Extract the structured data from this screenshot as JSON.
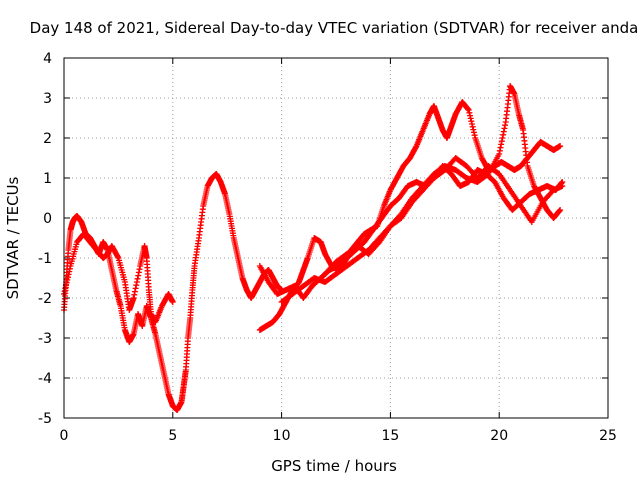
{
  "chart_data": {
    "type": "scatter",
    "title": "Day 148 of 2021, Sidereal Day-to-day VTEC variation (SDTVAR) for receiver anda",
    "xlabel": "GPS time / hours",
    "ylabel": "SDTVAR / TECUs",
    "xlim": [
      0,
      25
    ],
    "ylim": [
      -5,
      4
    ],
    "xticks": [
      0,
      5,
      10,
      15,
      20,
      25
    ],
    "yticks": [
      -5,
      -4,
      -3,
      -2,
      -1,
      0,
      1,
      2,
      3,
      4
    ],
    "grid": true,
    "marker": "+",
    "color": "#ff0000",
    "series": [
      {
        "name": "track-1",
        "x": [
          0.0,
          0.1,
          0.2,
          0.3,
          0.4,
          0.5,
          0.6,
          0.8,
          1.0,
          1.2,
          1.4,
          1.6,
          1.8,
          2.0,
          2.2,
          2.4,
          2.6,
          2.8,
          3.0,
          3.2,
          3.4,
          3.6,
          3.8,
          4.0,
          4.2,
          4.4,
          4.6,
          4.8,
          5.0,
          5.2,
          5.4,
          5.5,
          5.6,
          5.7,
          5.8,
          5.9,
          6.0,
          6.2,
          6.4,
          6.6,
          6.8,
          7.0,
          7.2,
          7.4,
          7.6,
          7.8,
          8.0,
          8.2,
          8.4,
          8.6,
          8.8,
          9.0,
          9.2,
          9.4,
          9.6,
          9.8,
          10.0
        ],
        "y": [
          -2.3,
          -1.6,
          -0.8,
          -0.3,
          -0.1,
          0.0,
          0.05,
          -0.1,
          -0.4,
          -0.5,
          -0.7,
          -0.9,
          -0.6,
          -0.8,
          -1.3,
          -1.8,
          -2.2,
          -2.8,
          -3.1,
          -2.9,
          -2.4,
          -2.7,
          -2.2,
          -2.5,
          -2.9,
          -3.4,
          -3.9,
          -4.4,
          -4.7,
          -4.8,
          -4.6,
          -4.2,
          -3.8,
          -3.0,
          -2.5,
          -1.8,
          -1.2,
          -0.5,
          0.3,
          0.8,
          1.0,
          1.1,
          0.9,
          0.6,
          0.1,
          -0.5,
          -1.0,
          -1.5,
          -1.8,
          -2.0,
          -1.8,
          -1.6,
          -1.4,
          -1.3,
          -1.5,
          -1.7,
          -1.8
        ]
      },
      {
        "name": "track-2",
        "x": [
          0.0,
          0.3,
          0.6,
          0.9,
          1.2,
          1.5,
          1.8,
          2.0,
          2.2,
          2.5,
          2.8,
          3.0,
          3.2,
          3.5,
          3.7,
          3.8,
          3.9,
          4.0,
          4.2,
          4.5,
          4.8,
          5.0
        ],
        "y": [
          -1.9,
          -1.2,
          -0.6,
          -0.4,
          -0.6,
          -0.8,
          -1.0,
          -0.9,
          -0.7,
          -1.0,
          -1.6,
          -2.3,
          -2.0,
          -1.2,
          -0.7,
          -1.0,
          -1.8,
          -2.4,
          -2.6,
          -2.2,
          -1.9,
          -2.1
        ]
      },
      {
        "name": "track-3",
        "x": [
          9.0,
          9.3,
          9.6,
          9.9,
          10.2,
          10.5,
          10.8,
          11.0,
          11.2,
          11.5,
          11.8,
          12.0,
          12.3,
          12.6,
          12.9,
          13.2,
          13.5,
          13.8,
          14.1,
          14.4,
          14.7,
          15.0,
          15.3,
          15.6,
          15.9,
          16.2,
          16.5,
          16.8,
          17.0,
          17.2,
          17.4,
          17.6,
          17.8,
          18.0,
          18.3,
          18.6,
          18.9,
          19.2,
          19.5,
          19.8,
          20.1,
          20.4,
          20.7,
          21.0,
          21.3,
          21.6,
          21.9,
          22.2,
          22.5,
          22.8
        ],
        "y": [
          -2.8,
          -2.7,
          -2.6,
          -2.4,
          -2.1,
          -1.8,
          -1.6,
          -1.3,
          -1.0,
          -0.5,
          -0.6,
          -0.9,
          -1.2,
          -1.3,
          -1.1,
          -0.8,
          -0.6,
          -0.4,
          -0.3,
          -0.2,
          0.3,
          0.7,
          1.0,
          1.3,
          1.5,
          1.8,
          2.2,
          2.6,
          2.8,
          2.5,
          2.2,
          2.0,
          2.3,
          2.6,
          2.9,
          2.7,
          2.0,
          1.5,
          1.2,
          1.3,
          1.4,
          1.3,
          1.2,
          1.3,
          1.5,
          1.7,
          1.9,
          1.8,
          1.7,
          1.8
        ]
      },
      {
        "name": "track-4",
        "x": [
          9.0,
          9.4,
          9.8,
          10.2,
          10.6,
          11.0,
          11.4,
          11.8,
          12.2,
          12.6,
          13.0,
          13.4,
          13.8,
          14.2,
          14.6,
          15.0,
          15.4,
          15.8,
          16.2,
          16.6,
          17.0,
          17.4,
          17.8,
          18.2,
          18.6,
          19.0,
          19.4,
          19.8,
          20.2,
          20.6,
          21.0,
          21.4,
          21.8,
          22.2,
          22.6,
          22.9
        ],
        "y": [
          -1.2,
          -1.6,
          -1.9,
          -1.8,
          -1.7,
          -2.0,
          -1.7,
          -1.5,
          -1.3,
          -1.2,
          -1.0,
          -0.8,
          -0.6,
          -0.3,
          0.0,
          0.3,
          0.5,
          0.8,
          0.9,
          0.8,
          1.0,
          1.3,
          1.1,
          0.8,
          0.9,
          1.2,
          1.1,
          0.9,
          0.5,
          0.2,
          0.4,
          0.6,
          0.7,
          0.8,
          0.7,
          0.9
        ]
      },
      {
        "name": "track-5",
        "x": [
          10.0,
          10.5,
          11.0,
          11.5,
          12.0,
          12.5,
          13.0,
          13.5,
          14.0,
          14.5,
          15.0,
          15.5,
          16.0,
          16.5,
          17.0,
          17.5,
          18.0,
          18.5,
          19.0,
          19.5,
          20.0,
          20.3,
          20.5,
          20.7,
          20.9,
          21.1,
          21.3,
          21.6,
          21.9,
          22.2,
          22.5,
          22.8
        ],
        "y": [
          -2.1,
          -1.9,
          -1.7,
          -1.5,
          -1.6,
          -1.4,
          -1.2,
          -1.0,
          -0.8,
          -0.5,
          -0.2,
          0.1,
          0.5,
          0.8,
          1.1,
          1.3,
          1.2,
          1.0,
          0.9,
          1.1,
          1.6,
          2.4,
          3.3,
          3.1,
          2.6,
          2.2,
          1.3,
          0.8,
          0.5,
          0.2,
          0.0,
          0.2
        ]
      },
      {
        "name": "track-6",
        "x": [
          12.0,
          12.5,
          13.0,
          13.5,
          14.0,
          14.5,
          15.0,
          15.5,
          16.0,
          16.5,
          17.0,
          17.5,
          18.0,
          18.5,
          19.0,
          19.5,
          20.0,
          20.5,
          21.0,
          21.5,
          22.0,
          22.5,
          22.9
        ],
        "y": [
          -1.4,
          -1.1,
          -0.9,
          -0.7,
          -0.9,
          -0.6,
          -0.2,
          0.0,
          0.4,
          0.7,
          1.0,
          1.2,
          1.5,
          1.3,
          1.0,
          1.3,
          1.1,
          0.7,
          0.3,
          -0.1,
          0.4,
          0.7,
          0.8
        ]
      }
    ]
  }
}
